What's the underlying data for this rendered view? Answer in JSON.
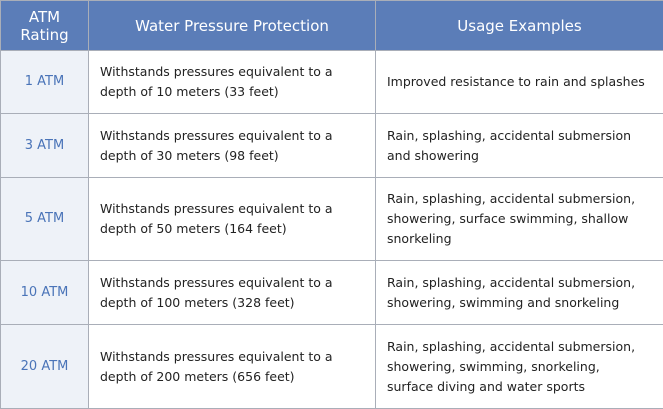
{
  "table": {
    "header": [
      "ATM Rating",
      "Water Pressure Protection",
      "Usage Examples"
    ],
    "rows": [
      [
        "1 ATM",
        "Withstands pressures equivalent to a depth of 10 meters (33 feet)",
        "Improved resistance to rain and splashes"
      ],
      [
        "3 ATM",
        "Withstands pressures equivalent to a depth of 30 meters (98 feet)",
        "Rain, splashing, accidental submersion and showering"
      ],
      [
        "5 ATM",
        "Withstands pressures equivalent to a depth of 50 meters (164 feet)",
        "Rain, splashing, accidental submersion, showering, surface swimming, shallow snorkeling"
      ],
      [
        "10 ATM",
        "Withstands pressures equivalent to a depth of 100 meters (328 feet)",
        "Rain, splashing, accidental submersion, showering, swimming and snorkeling"
      ],
      [
        "20 ATM",
        "Withstands pressures equivalent to a depth of 200 meters (656 feet)",
        "Rain, splashing, accidental submersion, showering, swimming, snorkeling, surface diving and water sports"
      ]
    ]
  }
}
